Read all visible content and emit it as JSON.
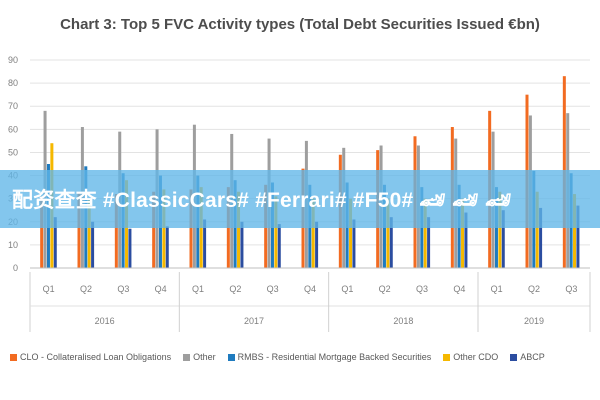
{
  "chart_data": {
    "type": "bar",
    "title": "Chart 3: Top 5 FVC Activity types (Total Debt Securities Issued €bn)",
    "xlabel": "",
    "ylabel": "",
    "ylim": [
      0,
      90
    ],
    "yticks": [
      0,
      10,
      20,
      30,
      40,
      50,
      60,
      70,
      80,
      90
    ],
    "grid": true,
    "legend_position": "bottom",
    "categories": [
      "Q1",
      "Q2",
      "Q3",
      "Q4",
      "Q1",
      "Q2",
      "Q3",
      "Q4",
      "Q1",
      "Q2",
      "Q3",
      "Q4",
      "Q1",
      "Q2",
      "Q3"
    ],
    "groups": [
      {
        "label": "2016",
        "count": 4
      },
      {
        "label": "2017",
        "count": 4
      },
      {
        "label": "2018",
        "count": 4
      },
      {
        "label": "2019",
        "count": 3
      }
    ],
    "series": [
      {
        "name": "CLO - Collateralised Loan Obligations",
        "color": "#f26b21",
        "values": [
          31,
          33,
          32,
          33,
          34,
          35,
          36,
          43,
          49,
          51,
          57,
          61,
          68,
          75,
          83
        ]
      },
      {
        "name": "Other",
        "color": "#9e9e9e",
        "values": [
          68,
          61,
          59,
          60,
          62,
          58,
          56,
          55,
          52,
          53,
          53,
          56,
          59,
          66,
          67
        ]
      },
      {
        "name": "RMBS - Residential Mortgage Backed Securities",
        "color": "#1f7bbf",
        "values": [
          45,
          44,
          41,
          40,
          40,
          38,
          37,
          36,
          37,
          36,
          35,
          36,
          35,
          42,
          41
        ]
      },
      {
        "name": "Other CDO",
        "color": "#f5b800",
        "values": [
          54,
          30,
          38,
          34,
          35,
          33,
          31,
          30,
          30,
          30,
          30,
          30,
          33,
          33,
          32
        ]
      },
      {
        "name": "ABCP",
        "color": "#2b4da0",
        "values": [
          22,
          20,
          17,
          18,
          21,
          20,
          19,
          20,
          21,
          22,
          22,
          24,
          25,
          26,
          27
        ]
      }
    ]
  },
  "watermark": {
    "text": "配资查查 #ClassicCars# #Ferrari# #F50# 🏎 🏎 🏎"
  }
}
